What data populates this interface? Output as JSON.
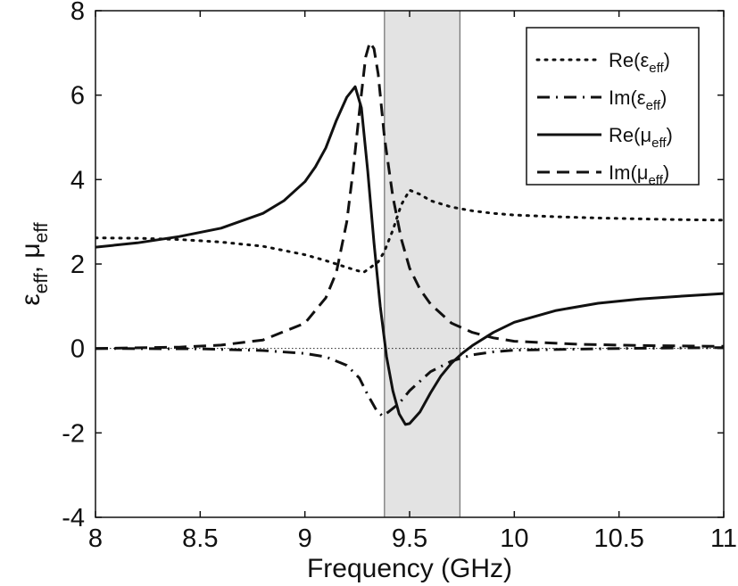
{
  "chart_data": {
    "type": "line",
    "xlabel": "Frequency (GHz)",
    "ylabel": {
      "parts": [
        {
          "text": "ε"
        },
        {
          "text": "eff",
          "sub": true
        },
        {
          "text": ", μ"
        },
        {
          "text": "eff",
          "sub": true
        }
      ]
    },
    "xlim": [
      8,
      11
    ],
    "ylim": [
      -4,
      8
    ],
    "xticks": [
      8,
      8.5,
      9,
      9.5,
      10,
      10.5,
      11
    ],
    "xtick_labels": [
      "8",
      "8.5",
      "9",
      "9.5",
      "10",
      "10.5",
      "11"
    ],
    "yticks": [
      -4,
      -2,
      0,
      2,
      4,
      6,
      8
    ],
    "ytick_labels": [
      "-4",
      "-2",
      "0",
      "2",
      "4",
      "6",
      "8"
    ],
    "grid": false,
    "legend_position": "top-right",
    "shaded_band": {
      "x_range": [
        9.38,
        9.74
      ],
      "color": "#e3e3e3"
    },
    "zero_line": {
      "y": 0,
      "style": "dotted"
    },
    "series": [
      {
        "key": "re_eps",
        "name": {
          "prefix": "Re(ε",
          "sub": "eff",
          "suffix": ")"
        },
        "style": "dotted",
        "x": [
          8.0,
          8.2,
          8.4,
          8.6,
          8.8,
          9.0,
          9.1,
          9.2,
          9.28,
          9.35,
          9.38,
          9.42,
          9.46,
          9.5,
          9.55,
          9.6,
          9.7,
          9.8,
          9.9,
          10.0,
          10.2,
          10.4,
          10.6,
          10.8,
          11.0
        ],
        "values": [
          2.62,
          2.61,
          2.58,
          2.52,
          2.42,
          2.22,
          2.08,
          1.92,
          1.8,
          2.05,
          2.3,
          2.8,
          3.4,
          3.75,
          3.65,
          3.5,
          3.35,
          3.26,
          3.2,
          3.16,
          3.12,
          3.09,
          3.07,
          3.05,
          3.04
        ]
      },
      {
        "key": "im_eps",
        "name": {
          "prefix": "Im(ε",
          "sub": "eff",
          "suffix": ")"
        },
        "style": "dashdot",
        "x": [
          8.0,
          8.5,
          8.8,
          9.0,
          9.1,
          9.2,
          9.26,
          9.3,
          9.34,
          9.37,
          9.4,
          9.45,
          9.5,
          9.6,
          9.7,
          9.8,
          9.9,
          10.0,
          10.5,
          11.0
        ],
        "values": [
          0.0,
          -0.01,
          -0.05,
          -0.12,
          -0.2,
          -0.4,
          -0.7,
          -1.1,
          -1.45,
          -1.6,
          -1.5,
          -1.3,
          -1.0,
          -0.55,
          -0.3,
          -0.15,
          -0.08,
          -0.04,
          0.0,
          0.02
        ]
      },
      {
        "key": "re_mu",
        "name": {
          "prefix": "Re(μ",
          "sub": "eff",
          "suffix": ")"
        },
        "style": "solid",
        "x": [
          8.0,
          8.2,
          8.4,
          8.6,
          8.8,
          8.9,
          9.0,
          9.05,
          9.1,
          9.15,
          9.2,
          9.24,
          9.27,
          9.3,
          9.33,
          9.36,
          9.39,
          9.42,
          9.45,
          9.48,
          9.5,
          9.55,
          9.6,
          9.65,
          9.7,
          9.75,
          9.8,
          9.9,
          10.0,
          10.2,
          10.4,
          10.6,
          10.8,
          11.0
        ],
        "values": [
          2.4,
          2.5,
          2.65,
          2.85,
          3.2,
          3.5,
          3.95,
          4.3,
          4.75,
          5.4,
          5.95,
          6.2,
          5.7,
          4.2,
          2.5,
          1.0,
          -0.2,
          -1.0,
          -1.55,
          -1.8,
          -1.78,
          -1.5,
          -1.05,
          -0.65,
          -0.35,
          -0.12,
          0.07,
          0.38,
          0.62,
          0.9,
          1.07,
          1.17,
          1.24,
          1.3
        ]
      },
      {
        "key": "im_mu",
        "name": {
          "prefix": "Im(μ",
          "sub": "eff",
          "suffix": ")"
        },
        "style": "dashed",
        "x": [
          8.0,
          8.4,
          8.6,
          8.8,
          9.0,
          9.1,
          9.15,
          9.2,
          9.23,
          9.26,
          9.29,
          9.31,
          9.33,
          9.35,
          9.38,
          9.42,
          9.46,
          9.5,
          9.55,
          9.6,
          9.7,
          9.8,
          9.9,
          10.0,
          10.3,
          10.6,
          11.0
        ],
        "values": [
          0.0,
          0.03,
          0.08,
          0.2,
          0.6,
          1.2,
          1.8,
          3.0,
          4.2,
          5.6,
          6.9,
          7.25,
          7.1,
          6.5,
          5.0,
          3.6,
          2.6,
          1.9,
          1.4,
          1.05,
          0.6,
          0.38,
          0.25,
          0.17,
          0.1,
          0.07,
          0.05
        ]
      }
    ]
  }
}
